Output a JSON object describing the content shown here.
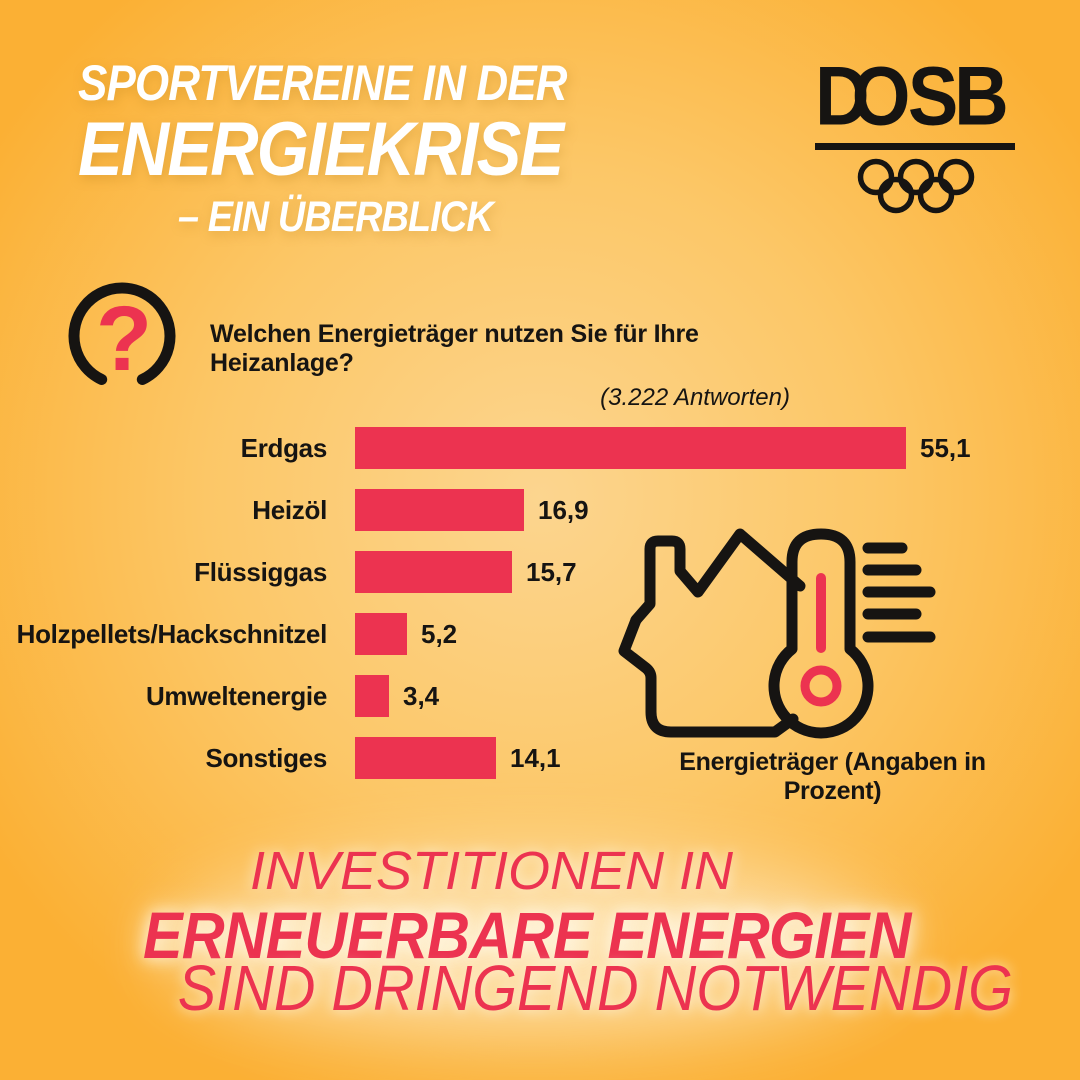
{
  "palette": {
    "red": "#ec3350",
    "black": "#161412",
    "white": "#ffffff",
    "bg_center": "#fcd58f",
    "bg_mid": "#fcc767",
    "bg_edge": "#fbb034"
  },
  "header": {
    "title_line1": "SPORTVEREINE IN DER",
    "title_line2": "ENERGIEKRISE",
    "title_line3": "– EIN ÜBERBLICK",
    "logo_letters": [
      "D",
      "O",
      "S",
      "B"
    ]
  },
  "question": {
    "icon_glyph": "?",
    "text": "Welchen Energieträger nutzen Sie für Ihre Heizanlage?",
    "answers_note": "(3.222 Antworten)"
  },
  "chart_data": {
    "type": "bar",
    "orientation": "horizontal",
    "categories": [
      "Erdgas",
      "Heizöl",
      "Flüssiggas",
      "Holzpellets/Hackschnitzel",
      "Umweltenergie",
      "Sonstiges"
    ],
    "values": [
      55.1,
      16.9,
      15.7,
      5.2,
      3.4,
      14.1
    ],
    "value_labels": [
      "55,1",
      "16,9",
      "15,7",
      "5,2",
      "3,4",
      "14,1"
    ],
    "unit": "percent",
    "xlim": [
      0,
      57
    ],
    "grid": false,
    "legend": false,
    "bar_color": "#ec3350",
    "caption": "Energieträger (Angaben in Prozent)"
  },
  "footer": {
    "line1": "INVESTITIONEN IN",
    "line2": "ERNEUERBARE ENERGIEN",
    "line3": "SIND DRINGEND NOTWENDIG"
  }
}
